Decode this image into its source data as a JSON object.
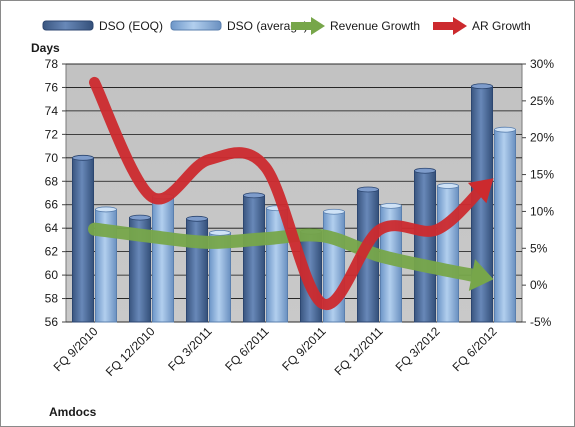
{
  "chart_data": {
    "type": "bar",
    "title": "Amdocs",
    "ylabel": "Days",
    "categories": [
      "FQ 9/2010",
      "FQ 12/2010",
      "FQ 3/2011",
      "FQ 6/2011",
      "FQ 9/2011",
      "FQ 12/2011",
      "FQ 3/2012",
      "FQ 6/2012"
    ],
    "ylim": [
      56,
      78
    ],
    "yticks": [
      "56",
      "58",
      "60",
      "62",
      "64",
      "66",
      "68",
      "70",
      "72",
      "74",
      "76",
      "78"
    ],
    "y2lim": [
      -5,
      30
    ],
    "y2ticks": [
      "-5%",
      "0%",
      "5%",
      "10%",
      "15%",
      "20%",
      "25%",
      "30%"
    ],
    "grid": true,
    "legend_position": "top",
    "series": [
      {
        "name": "DSO (EOQ)",
        "kind": "bar",
        "axis": "left",
        "color": "#4f6d9b",
        "values": [
          70.0,
          64.9,
          64.8,
          66.8,
          63.7,
          67.3,
          68.9,
          76.1
        ]
      },
      {
        "name": "DSO (average)",
        "kind": "bar",
        "axis": "left",
        "color": "#8db3e2",
        "values": [
          65.6,
          66.7,
          63.6,
          65.7,
          65.4,
          65.9,
          67.6,
          72.4
        ]
      },
      {
        "name": "Revenue Growth",
        "kind": "arrow-line",
        "axis": "right",
        "color": "#77a64a",
        "values": [
          7.6,
          6.6,
          5.8,
          6.3,
          6.7,
          4.0,
          2.3,
          0.8
        ]
      },
      {
        "name": "AR Growth",
        "kind": "arrow-line",
        "axis": "right",
        "color": "#cc2a2e",
        "values": [
          27.5,
          12.0,
          17.0,
          16.0,
          -2.5,
          7.5,
          7.5,
          14.5
        ]
      }
    ]
  }
}
